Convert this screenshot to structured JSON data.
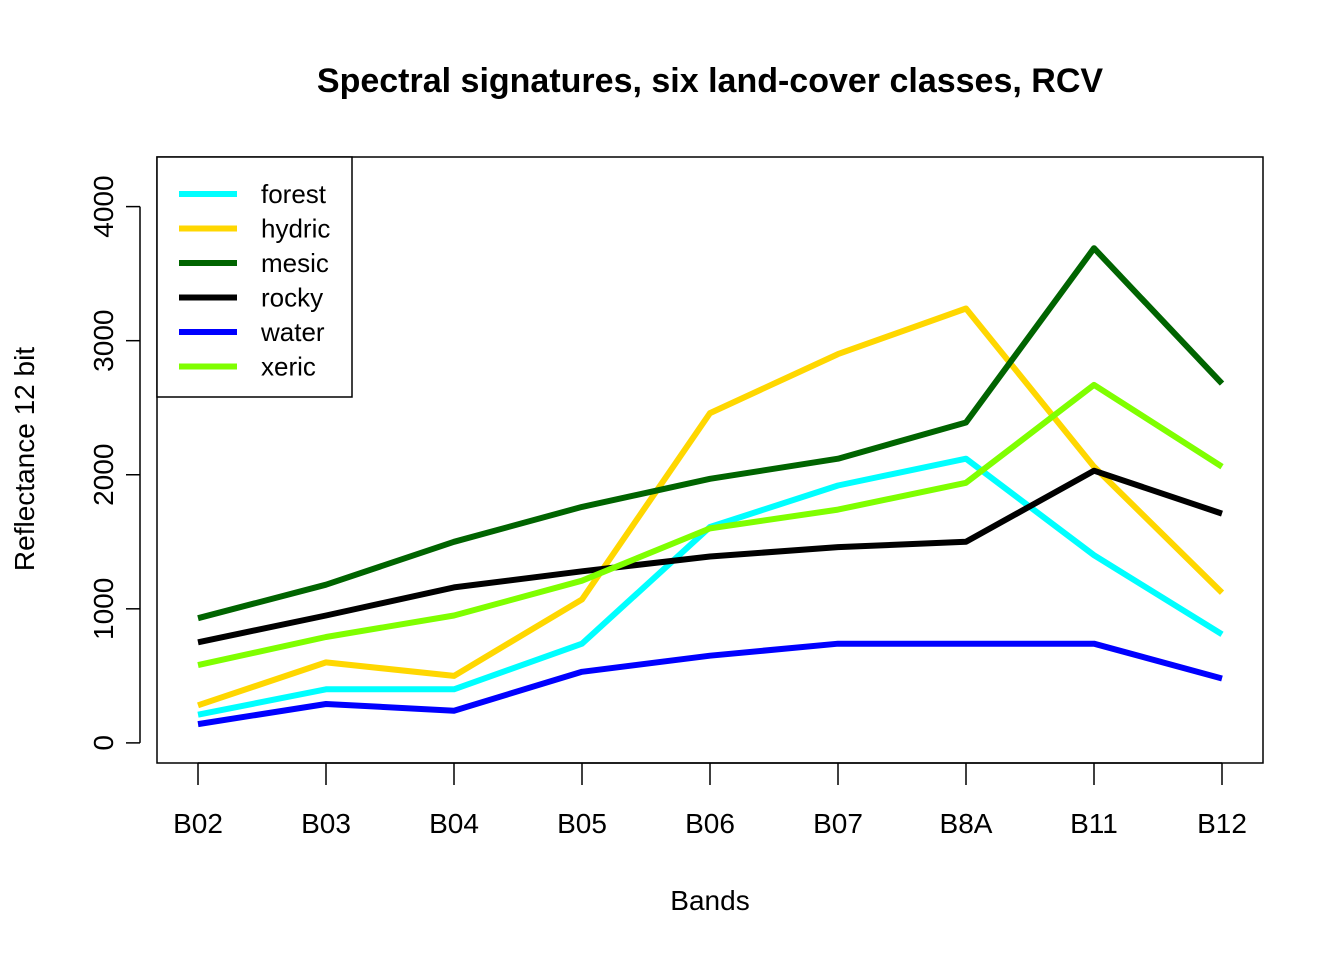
{
  "chart_data": {
    "type": "line",
    "title": "Spectral signatures, six land-cover classes, RCV",
    "xlabel": "Bands",
    "ylabel": "Reflectance 12 bit",
    "categories": [
      "B02",
      "B03",
      "B04",
      "B05",
      "B06",
      "B07",
      "B8A",
      "B11",
      "B12"
    ],
    "yticks": [
      "0",
      "1000",
      "2000",
      "3000",
      "4000"
    ],
    "ylim": [
      -150,
      4370
    ],
    "legend_position": "top-left",
    "grid": false,
    "series": [
      {
        "name": "forest",
        "color": "#00FFFF",
        "values": [
          210,
          400,
          400,
          740,
          1610,
          1920,
          2120,
          1400,
          810
        ]
      },
      {
        "name": "hydric",
        "color": "#FFD700",
        "values": [
          280,
          600,
          500,
          1070,
          2460,
          2900,
          3240,
          2060,
          1120
        ]
      },
      {
        "name": "mesic",
        "color": "#006400",
        "values": [
          930,
          1180,
          1500,
          1760,
          1970,
          2120,
          2390,
          3690,
          2680
        ]
      },
      {
        "name": "rocky",
        "color": "#000000",
        "values": [
          750,
          950,
          1160,
          1280,
          1390,
          1460,
          1500,
          2030,
          1710
        ]
      },
      {
        "name": "water",
        "color": "#0000FF",
        "values": [
          140,
          290,
          240,
          530,
          650,
          740,
          740,
          740,
          480
        ]
      },
      {
        "name": "xeric",
        "color": "#7FFF00",
        "values": [
          580,
          790,
          950,
          1210,
          1600,
          1740,
          1940,
          2670,
          2060
        ]
      }
    ]
  }
}
